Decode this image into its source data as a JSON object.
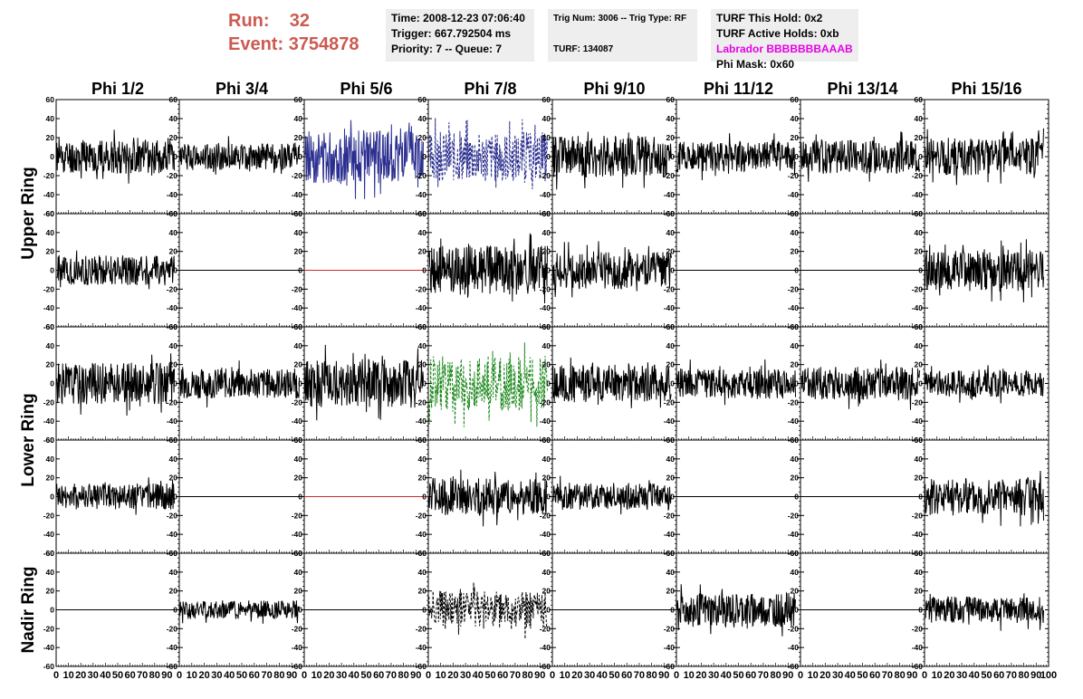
{
  "header": {
    "run_label": "Run:",
    "run_value": "32",
    "event_label": "Event:",
    "event_value": "3754878",
    "time": "Time: 2008-12-23 07:06:40",
    "trigger": "Trigger: 667.792504 ms",
    "priority": "Priority: 7 -- Queue: 7",
    "trig_num": "Trig Num: 3006 -- Trig Type: RF",
    "turf": "TURF: 134087",
    "turf_this_hold": "TURF This Hold: 0x2",
    "turf_active_holds": "TURF Active Holds: 0xb",
    "labrador": "Labrador BBBBBBBAAAB",
    "phi_mask": "Phi Mask: 0x60"
  },
  "colors": {
    "run_text": "#cc5a50",
    "labrador_text": "#e600e6",
    "trace_default": "#000000",
    "trace_blue": "#2b2f8f",
    "trace_green": "#1f8a1f",
    "trace_dead": "#cc2a2a",
    "info_bg": "#eeeeee"
  },
  "chart_data": {
    "type": "line",
    "columns": [
      "Phi 1/2",
      "Phi 3/4",
      "Phi 5/6",
      "Phi 7/8",
      "Phi 9/10",
      "Phi 11/12",
      "Phi 13/14",
      "Phi 15/16"
    ],
    "rows": [
      "Upper Ring",
      "Upper Ring",
      "Lower Ring",
      "Lower Ring",
      "Nadir Ring"
    ],
    "row_labels": [
      "Upper Ring",
      "Lower Ring",
      "Nadir Ring"
    ],
    "ylim": [
      -60,
      60
    ],
    "yticks": [
      -60,
      -40,
      -20,
      0,
      20,
      40,
      60
    ],
    "xlim": [
      0,
      100
    ],
    "xtick_labels": [
      "0",
      "10",
      "20",
      "30",
      "40",
      "50",
      "60",
      "70",
      "80",
      "90",
      "100"
    ],
    "panels": [
      [
        {
          "style": "noise",
          "amp": 18,
          "seed": 11
        },
        {
          "style": "noise",
          "amp": 14,
          "seed": 12
        },
        {
          "style": "blue",
          "amp": 28,
          "seed": 13
        },
        {
          "style": "dashed-blue",
          "amp": 26,
          "seed": 14
        },
        {
          "style": "noise",
          "amp": 22,
          "seed": 15
        },
        {
          "style": "noise",
          "amp": 16,
          "seed": 16
        },
        {
          "style": "noise",
          "amp": 18,
          "seed": 17
        },
        {
          "style": "noise",
          "amp": 20,
          "seed": 18
        }
      ],
      [
        {
          "style": "noise",
          "amp": 16,
          "seed": 21
        },
        {
          "style": "flat",
          "amp": 0,
          "seed": 22
        },
        {
          "style": "flat-red",
          "amp": 0,
          "seed": 23
        },
        {
          "style": "noise",
          "amp": 26,
          "seed": 24
        },
        {
          "style": "noise",
          "amp": 20,
          "seed": 25
        },
        {
          "style": "flat",
          "amp": 0,
          "seed": 26
        },
        {
          "style": "flat",
          "amp": 0,
          "seed": 27
        },
        {
          "style": "noise",
          "amp": 22,
          "seed": 28
        }
      ],
      [
        {
          "style": "noise",
          "amp": 22,
          "seed": 31
        },
        {
          "style": "noise",
          "amp": 16,
          "seed": 32
        },
        {
          "style": "noise",
          "amp": 26,
          "seed": 33
        },
        {
          "style": "dashed-green",
          "amp": 30,
          "seed": 34
        },
        {
          "style": "noise",
          "amp": 20,
          "seed": 35
        },
        {
          "style": "noise",
          "amp": 16,
          "seed": 36
        },
        {
          "style": "noise",
          "amp": 18,
          "seed": 37
        },
        {
          "style": "noise",
          "amp": 14,
          "seed": 38
        }
      ],
      [
        {
          "style": "noise",
          "amp": 14,
          "seed": 41
        },
        {
          "style": "flat",
          "amp": 0,
          "seed": 42
        },
        {
          "style": "flat-red",
          "amp": 0,
          "seed": 43
        },
        {
          "style": "noise",
          "amp": 20,
          "seed": 44
        },
        {
          "style": "noise",
          "amp": 14,
          "seed": 45
        },
        {
          "style": "flat",
          "amp": 0,
          "seed": 46
        },
        {
          "style": "flat",
          "amp": 0,
          "seed": 47
        },
        {
          "style": "noise",
          "amp": 20,
          "seed": 48
        }
      ],
      [
        {
          "style": "flat",
          "amp": 0,
          "seed": 51
        },
        {
          "style": "noise",
          "amp": 10,
          "seed": 52
        },
        {
          "style": "flat",
          "amp": 0,
          "seed": 53
        },
        {
          "style": "dashed-black",
          "amp": 20,
          "seed": 54
        },
        {
          "style": "flat",
          "amp": 0,
          "seed": 55
        },
        {
          "style": "noise",
          "amp": 18,
          "seed": 56
        },
        {
          "style": "flat",
          "amp": 0,
          "seed": 57
        },
        {
          "style": "noise",
          "amp": 14,
          "seed": 58
        }
      ]
    ]
  }
}
